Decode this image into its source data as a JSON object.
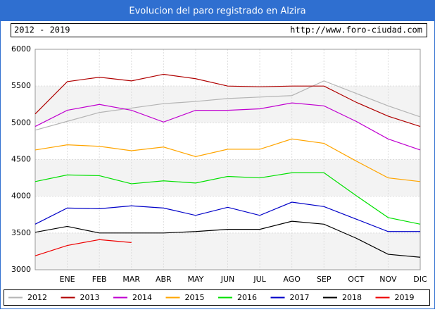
{
  "chart_data": {
    "type": "line",
    "title": "Evolucion del paro registrado en Alzira",
    "subtitle": "2012 - 2019",
    "source": "http://www.foro-ciudad.com",
    "categories": [
      null,
      "ENE",
      "FEB",
      "MAR",
      "ABR",
      "MAY",
      "JUN",
      "JUL",
      "AGO",
      "SEP",
      "OCT",
      "NOV",
      "DIC"
    ],
    "ylim": [
      3000,
      6000
    ],
    "yticks": [
      3000,
      3500,
      4000,
      4500,
      5000,
      5500,
      6000
    ],
    "grid": true,
    "series": [
      {
        "name": "2012",
        "color": "#b4b4b4",
        "values": [
          4900,
          5020,
          5140,
          5200,
          5260,
          5290,
          5330,
          5350,
          5370,
          5570,
          5400,
          5230,
          5080
        ]
      },
      {
        "name": "2013",
        "color": "#b00000",
        "values": [
          5120,
          5560,
          5620,
          5570,
          5660,
          5600,
          5500,
          5490,
          5500,
          5500,
          5280,
          5090,
          4950
        ]
      },
      {
        "name": "2014",
        "color": "#c000d0",
        "values": [
          4950,
          5170,
          5250,
          5170,
          5010,
          5170,
          5170,
          5190,
          5270,
          5230,
          5020,
          4780,
          4630
        ]
      },
      {
        "name": "2015",
        "color": "#ffa500",
        "values": [
          4630,
          4700,
          4680,
          4620,
          4670,
          4540,
          4640,
          4640,
          4780,
          4720,
          4480,
          4250,
          4200
        ]
      },
      {
        "name": "2016",
        "color": "#00e000",
        "values": [
          4200,
          4290,
          4280,
          4170,
          4210,
          4180,
          4270,
          4250,
          4320,
          4320,
          4010,
          3710,
          3620
        ]
      },
      {
        "name": "2017",
        "color": "#0000c8",
        "values": [
          3620,
          3840,
          3830,
          3870,
          3840,
          3740,
          3850,
          3740,
          3920,
          3860,
          3690,
          3520,
          3520
        ]
      },
      {
        "name": "2018",
        "color": "#000000",
        "values": [
          3510,
          3590,
          3500,
          3500,
          3500,
          3520,
          3550,
          3550,
          3660,
          3620,
          3430,
          3210,
          3170
        ]
      },
      {
        "name": "2019",
        "color": "#ee0000",
        "values": [
          3190,
          3330,
          3410,
          3370,
          null,
          null,
          null,
          null,
          null,
          null,
          null,
          null,
          null
        ]
      }
    ]
  }
}
